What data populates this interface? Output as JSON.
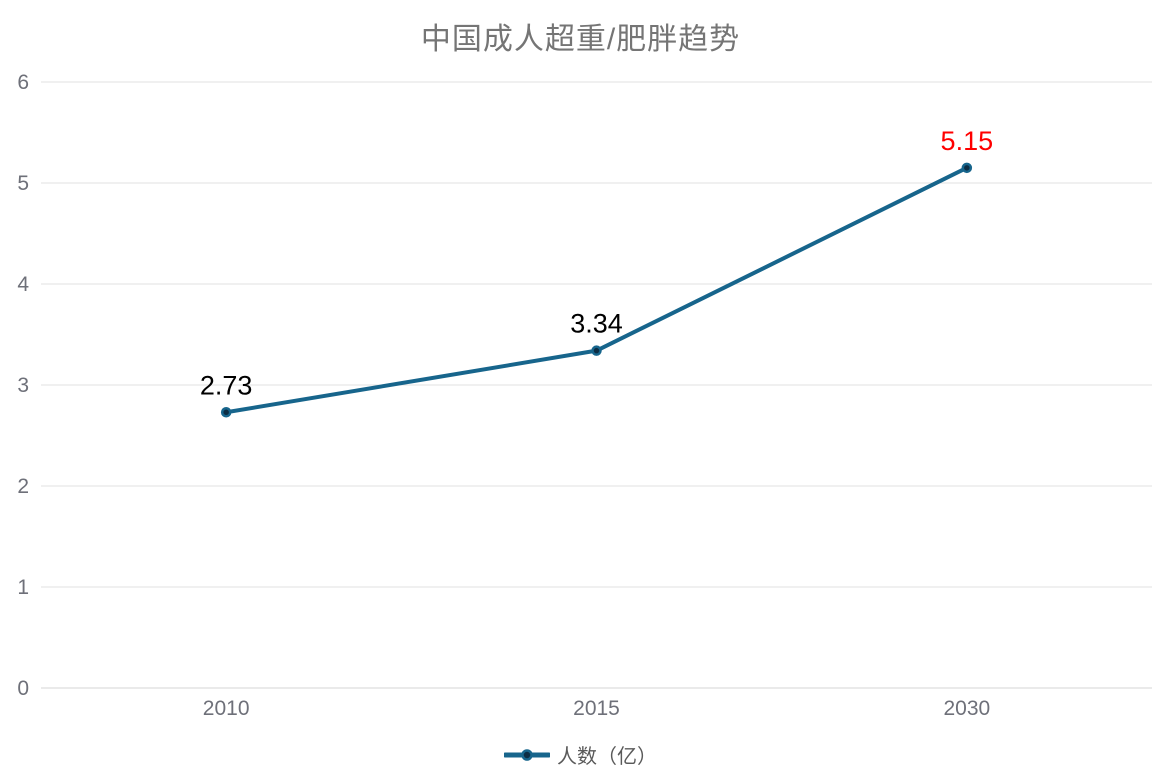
{
  "chart_data": {
    "type": "line",
    "title": "中国成人超重/肥胖趋势",
    "categories": [
      "2010",
      "2015",
      "2030"
    ],
    "series": [
      {
        "name": "人数（亿）",
        "values": [
          2.73,
          3.34,
          5.15
        ]
      }
    ],
    "value_labels": [
      {
        "text": "2.73",
        "color": "#000000"
      },
      {
        "text": "3.34",
        "color": "#000000"
      },
      {
        "text": "5.15",
        "color": "#ff0000"
      }
    ],
    "ylim": [
      0,
      6
    ],
    "yticks": [
      0,
      1,
      2,
      3,
      4,
      5,
      6
    ],
    "grid": true,
    "legend_position": "bottom",
    "colors": {
      "line": "#17658c",
      "marker_fill": "#0c2d44",
      "marker_border": "#17658c",
      "grid_line": "#e0e0e0",
      "axis_line": "#d6d6d6",
      "axis_text": "#6e7079",
      "title_text": "#757575",
      "legend_text": "#5a5a5a",
      "highlight": "#ff0000",
      "background": "#ffffff"
    }
  }
}
